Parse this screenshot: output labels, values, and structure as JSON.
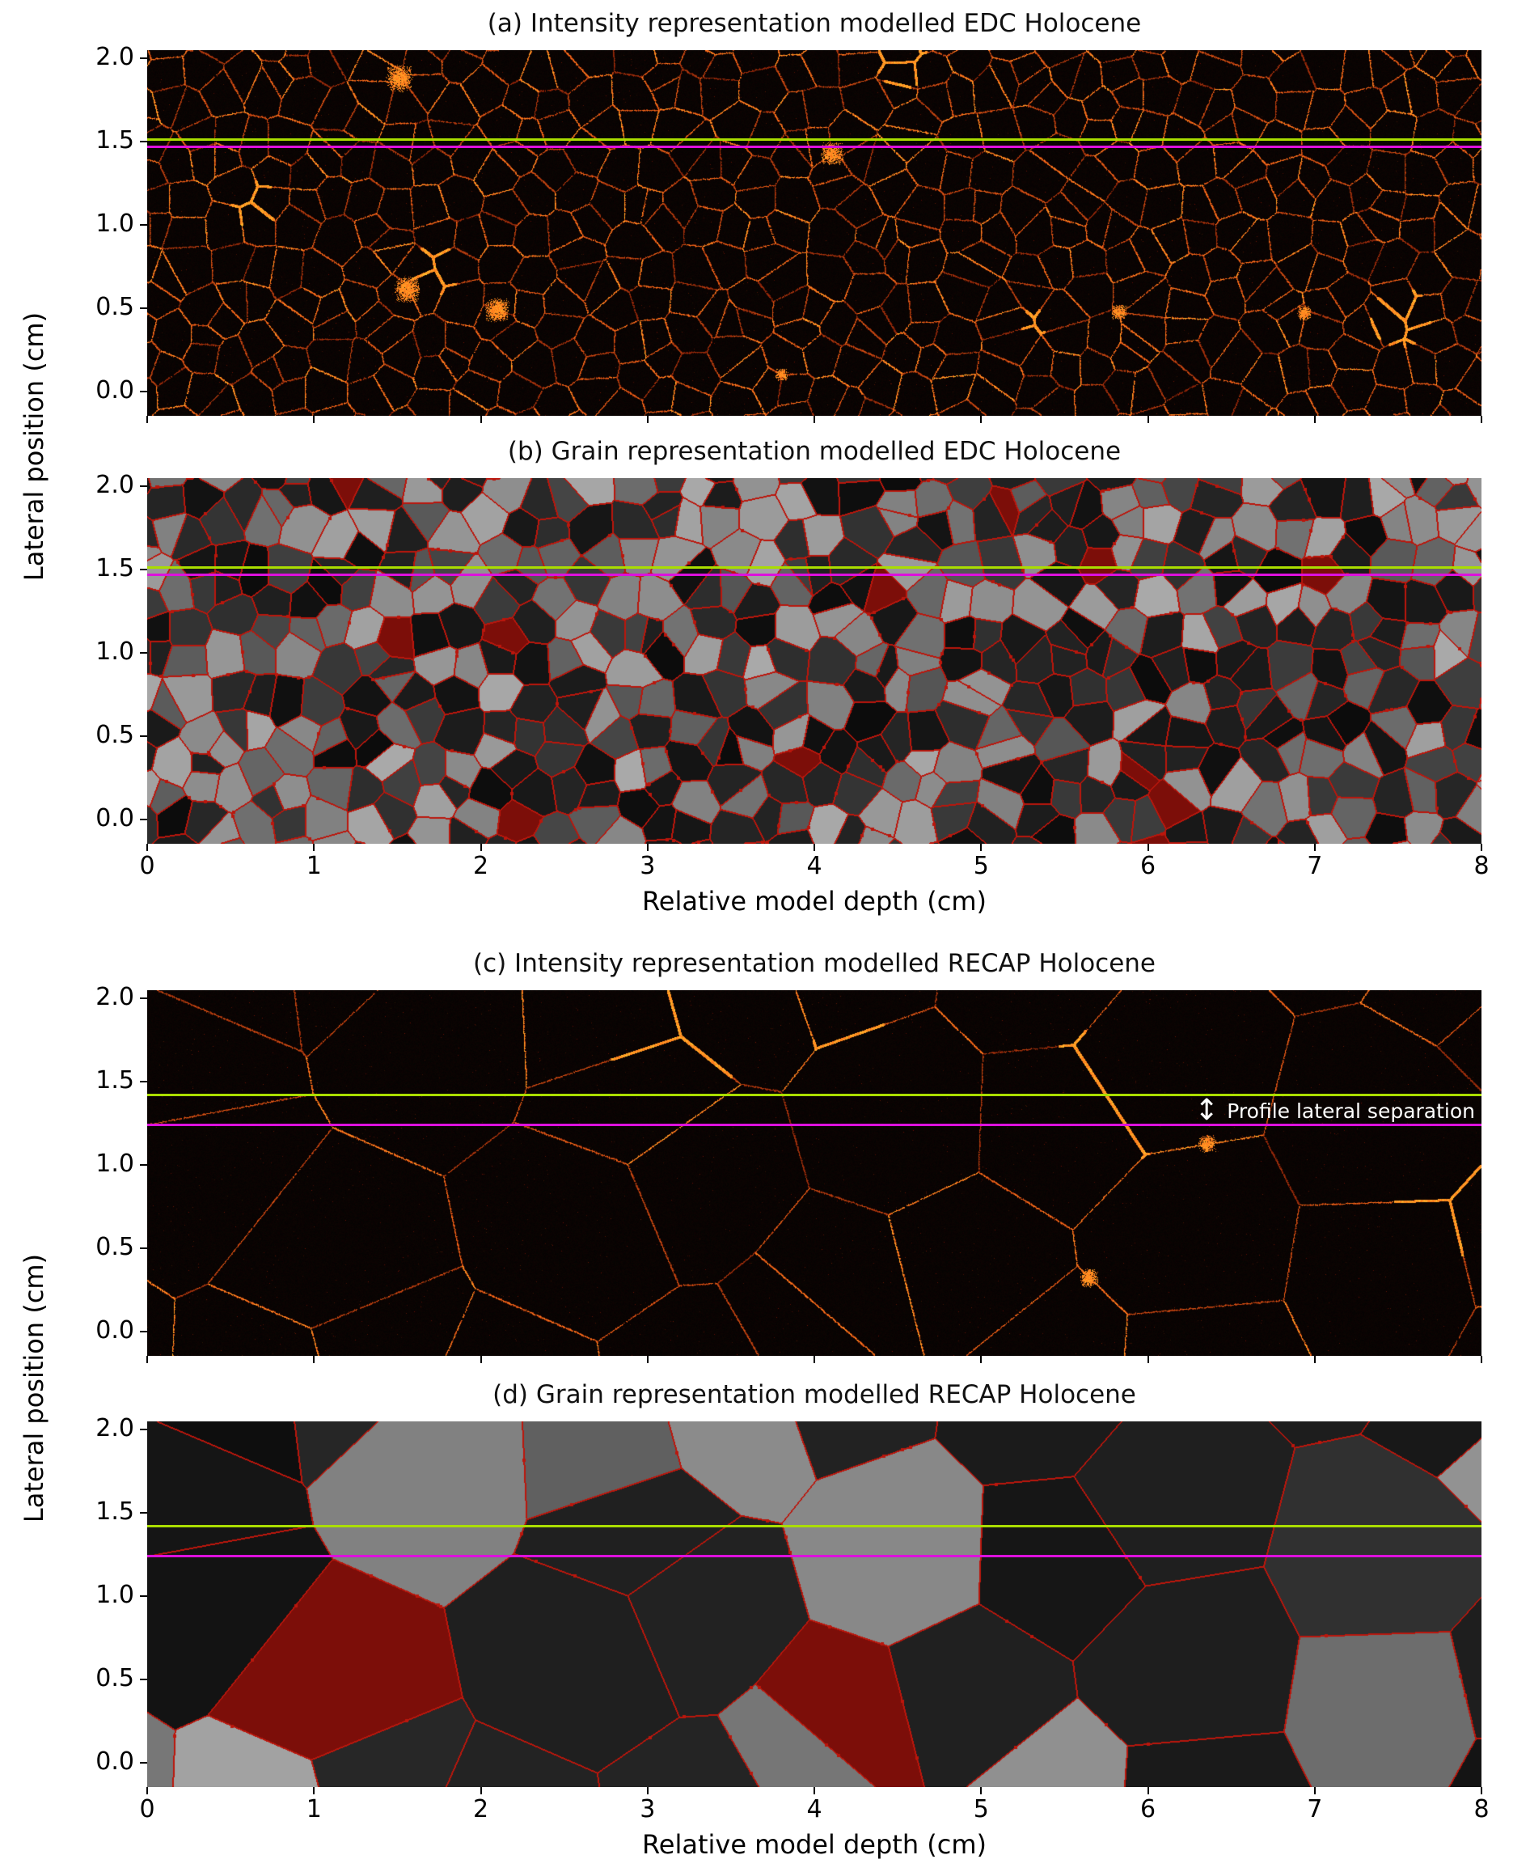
{
  "figure": {
    "background": "#ffffff",
    "ylabel": "Lateral position (cm)",
    "xlabel": "Relative model depth (cm)",
    "x_ticks": [
      "0",
      "1",
      "2",
      "3",
      "4",
      "5",
      "6",
      "7",
      "8"
    ],
    "y_ticks": [
      "2.0",
      "1.5",
      "1.0",
      "0.5",
      "0.0"
    ]
  },
  "panels": {
    "a": {
      "title": "(a) Intensity representation modelled EDC Holocene"
    },
    "b": {
      "title": "(b) Grain representation modelled EDC Holocene"
    },
    "c": {
      "title": "(c) Intensity representation modelled RECAP Holocene",
      "annotation": "Profile lateral separation"
    },
    "d": {
      "title": "(d) Grain representation modelled RECAP Holocene"
    }
  },
  "colors": {
    "profile_upper": "#aadd00",
    "profile_lower": "#dd11dd",
    "grain_boundary_red": "#bb160c",
    "intensity_orange": "#ff7a1a",
    "intensity_background": "#0a0302",
    "annotation_text": "#ffffff"
  },
  "chart_data": [
    {
      "panel": "a",
      "type": "heatmap",
      "title": "(a) Intensity representation modelled EDC Holocene",
      "xlabel": "Relative model depth (cm)",
      "ylabel": "Lateral position (cm)",
      "xlim": [
        0,
        8
      ],
      "ylim": [
        -0.14,
        2.05
      ],
      "x_ticks": [
        0,
        1,
        2,
        3,
        4,
        5,
        6,
        7,
        8
      ],
      "y_ticks": [
        0.0,
        0.5,
        1.0,
        1.5,
        2.0
      ],
      "aspect": "equal",
      "content": "Near-black field with speckled orange grain-boundary intensity network; many small grains, mean grain diameter ~0.2 cm; scattered bright recrystallized patches",
      "approx_mean_grain_diameter_cm": 0.2,
      "profile_lines": [
        {
          "y": 1.51,
          "color": "#aadd00"
        },
        {
          "y": 1.47,
          "color": "#dd11dd"
        }
      ]
    },
    {
      "panel": "b",
      "type": "heatmap",
      "title": "(b) Grain representation modelled EDC Holocene",
      "xlabel": "Relative model depth (cm)",
      "ylabel": "Lateral position (cm)",
      "xlim": [
        0,
        8
      ],
      "ylim": [
        -0.14,
        2.05
      ],
      "x_ticks": [
        0,
        1,
        2,
        3,
        4,
        5,
        6,
        7,
        8
      ],
      "y_ticks": [
        0.0,
        0.5,
        1.0,
        1.5,
        2.0
      ],
      "aspect": "equal",
      "content": "Grain map: grains filled with greyscale shades (near-black to light grey), thin red grain boundaries, occasional small dark-red sliver grains; mean grain diameter ~0.2 cm",
      "approx_mean_grain_diameter_cm": 0.2,
      "profile_lines": [
        {
          "y": 1.51,
          "color": "#aadd00"
        },
        {
          "y": 1.47,
          "color": "#dd11dd"
        }
      ]
    },
    {
      "panel": "c",
      "type": "heatmap",
      "title": "(c) Intensity representation modelled RECAP Holocene",
      "xlabel": "Relative model depth (cm)",
      "ylabel": "Lateral position (cm)",
      "xlim": [
        0,
        8
      ],
      "ylim": [
        -0.14,
        2.05
      ],
      "x_ticks": [
        0,
        1,
        2,
        3,
        4,
        5,
        6,
        7,
        8
      ],
      "y_ticks": [
        0.0,
        0.5,
        1.0,
        1.5,
        2.0
      ],
      "aspect": "equal",
      "content": "Near-black field with sparse orange grain-boundary network of large grains, mean grain diameter ~1 cm; a few bright boundary segments",
      "approx_mean_grain_diameter_cm": 1.0,
      "annotation": {
        "text": "Profile lateral separation",
        "color": "#ffffff",
        "x_cm": 6.2,
        "between_lines": true
      },
      "profile_lines": [
        {
          "y": 1.42,
          "color": "#aadd00"
        },
        {
          "y": 1.24,
          "color": "#dd11dd"
        }
      ]
    },
    {
      "panel": "d",
      "type": "heatmap",
      "title": "(d) Grain representation modelled RECAP Holocene",
      "xlabel": "Relative model depth (cm)",
      "ylabel": "Lateral position (cm)",
      "xlim": [
        0,
        8
      ],
      "ylim": [
        -0.14,
        2.05
      ],
      "x_ticks": [
        0,
        1,
        2,
        3,
        4,
        5,
        6,
        7,
        8
      ],
      "y_ticks": [
        0.0,
        0.5,
        1.0,
        1.5,
        2.0
      ],
      "aspect": "equal",
      "content": "Grain map of large grains (mean diameter ~1 cm) filled with dark and light grey shades, thin red boundaries with occasional thick red slivers",
      "approx_mean_grain_diameter_cm": 1.0,
      "profile_lines": [
        {
          "y": 1.42,
          "color": "#aadd00"
        },
        {
          "y": 1.24,
          "color": "#dd11dd"
        }
      ]
    }
  ]
}
